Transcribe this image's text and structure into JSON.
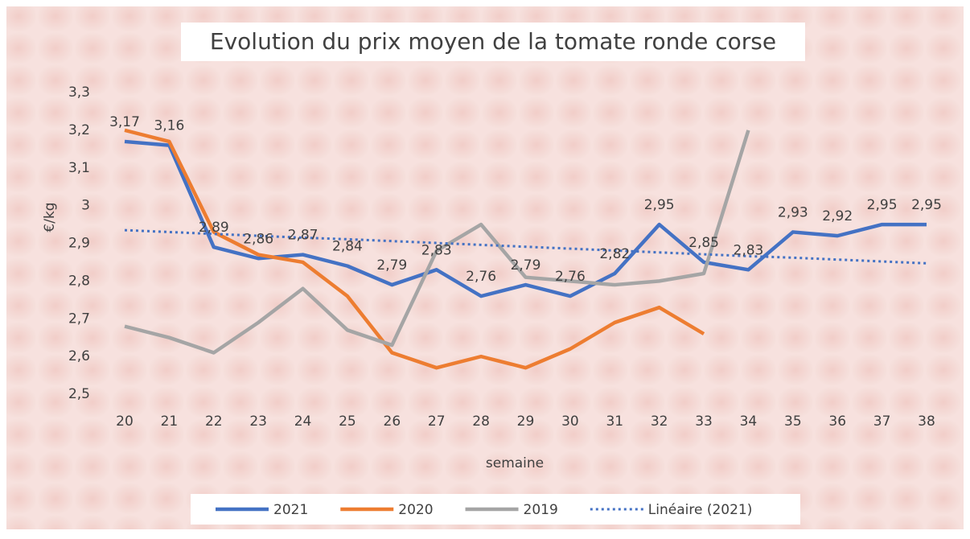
{
  "chart_data": {
    "type": "line",
    "title": "Evolution du prix moyen de la tomate ronde corse",
    "x_label": "semaine",
    "y_label": "€/kg",
    "categories": [
      "20",
      "21",
      "22",
      "23",
      "24",
      "25",
      "26",
      "27",
      "28",
      "29",
      "30",
      "31",
      "32",
      "33",
      "34",
      "35",
      "36",
      "37",
      "38"
    ],
    "ylim": [
      2.5,
      3.3
    ],
    "yticks": [
      {
        "value": 2.5,
        "label": "2,5"
      },
      {
        "value": 2.6,
        "label": "2,6"
      },
      {
        "value": 2.7,
        "label": "2,7"
      },
      {
        "value": 2.8,
        "label": "2,8"
      },
      {
        "value": 2.9,
        "label": "2,9"
      },
      3,
      {
        "value": 3.1,
        "label": "3,1"
      },
      {
        "value": 3.2,
        "label": "3,2"
      },
      {
        "value": 3.3,
        "label": "3,3"
      }
    ],
    "legend": "bottom",
    "series": [
      {
        "name": "2021",
        "color": "#4472c4",
        "style": "solid",
        "values": [
          3.17,
          3.16,
          2.89,
          2.86,
          2.87,
          2.84,
          2.79,
          2.83,
          2.76,
          2.79,
          2.76,
          2.82,
          2.95,
          2.85,
          2.83,
          2.93,
          2.92,
          2.95,
          2.95
        ],
        "value_labels": [
          "3,17",
          "3,16",
          "2,89",
          "2,86",
          "2,87",
          "2,84",
          "2,79",
          "2,83",
          "2,76",
          "2,79",
          "2,76",
          "2,82",
          "2,95",
          "2,85",
          "2,83",
          "2,93",
          "2,92",
          "2,95",
          "2,95"
        ]
      },
      {
        "name": "2020",
        "color": "#ed7d31",
        "style": "solid",
        "values": [
          3.2,
          3.17,
          2.93,
          2.87,
          2.85,
          2.76,
          2.61,
          2.57,
          2.6,
          2.57,
          2.62,
          2.69,
          2.73,
          2.66,
          null,
          null,
          null,
          null,
          null
        ]
      },
      {
        "name": "2019",
        "color": "#a5a5a5",
        "style": "solid",
        "values": [
          2.68,
          2.65,
          2.61,
          2.69,
          2.78,
          2.67,
          2.63,
          2.88,
          2.95,
          2.81,
          2.8,
          2.79,
          2.8,
          2.82,
          3.2,
          null,
          null,
          null,
          null
        ]
      },
      {
        "name": "Linéaire (2021)",
        "color": "#4472c4",
        "style": "dotted",
        "values": [
          2.935,
          2.93,
          2.925,
          2.92,
          2.915,
          2.911,
          2.906,
          2.901,
          2.896,
          2.891,
          2.886,
          2.881,
          2.876,
          2.871,
          2.866,
          2.862,
          2.857,
          2.852,
          2.847
        ]
      }
    ]
  }
}
